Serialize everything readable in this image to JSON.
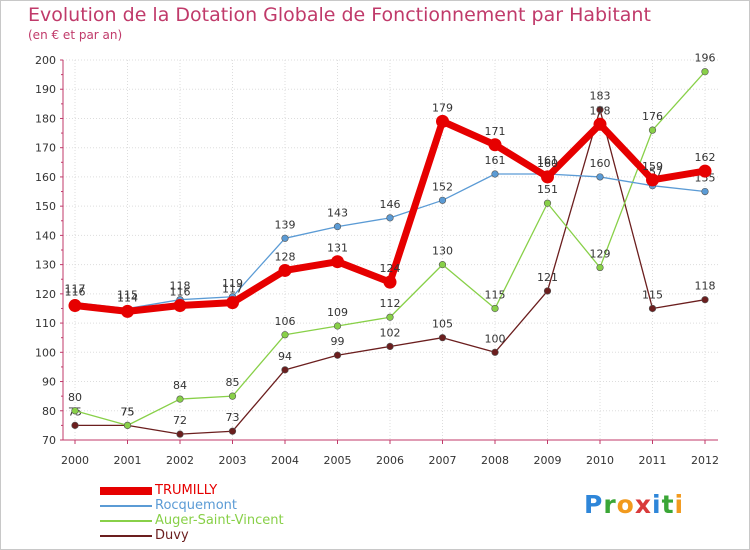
{
  "chart_data": {
    "type": "line",
    "title": "Evolution de la Dotation Globale de Fonctionnement par Habitant",
    "subtitle": "(en € et par an)",
    "xlabel": "",
    "ylabel": "",
    "ylim": [
      70,
      200
    ],
    "yticks": [
      70,
      80,
      90,
      100,
      110,
      120,
      130,
      140,
      150,
      160,
      170,
      180,
      190,
      200
    ],
    "categories": [
      "2000",
      "2001",
      "2002",
      "2003",
      "2004",
      "2005",
      "2006",
      "2007",
      "2008",
      "2009",
      "2010",
      "2011",
      "2012"
    ],
    "grid": true,
    "legend_position": "bottom-left",
    "series": [
      {
        "name": "Duvy",
        "color": "#6b1e1e",
        "values": [
          75,
          75,
          72,
          73,
          94,
          99,
          102,
          105,
          100,
          121,
          183,
          115,
          118
        ]
      },
      {
        "name": "Auger-Saint-Vincent",
        "color": "#88d048",
        "values": [
          80,
          75,
          84,
          85,
          106,
          109,
          112,
          130,
          115,
          151,
          129,
          176,
          196
        ]
      },
      {
        "name": "Rocquemont",
        "color": "#5b9bd5",
        "values": [
          117,
          115,
          118,
          119,
          139,
          143,
          146,
          152,
          161,
          161,
          160,
          157,
          155
        ]
      },
      {
        "name": "TRUMILLY",
        "color": "#e60000",
        "values": [
          116,
          114,
          116,
          117,
          128,
          131,
          124,
          179,
          171,
          160,
          178,
          159,
          162
        ]
      }
    ]
  },
  "legend": [
    {
      "label": "TRUMILLY",
      "color": "#e60000"
    },
    {
      "label": "Rocquemont",
      "color": "#5b9bd5"
    },
    {
      "label": "Auger-Saint-Vincent",
      "color": "#88d048"
    },
    {
      "label": "Duvy",
      "color": "#6b1e1e"
    }
  ],
  "logo": {
    "text": "Proxiti",
    "letters": [
      "P",
      "r",
      "o",
      "x",
      "i",
      "t",
      "i"
    ],
    "colors": [
      "#2e86d9",
      "#3aa636",
      "#f29a1d",
      "#d93a3a",
      "#2e86d9",
      "#3aa636",
      "#f29a1d"
    ]
  }
}
